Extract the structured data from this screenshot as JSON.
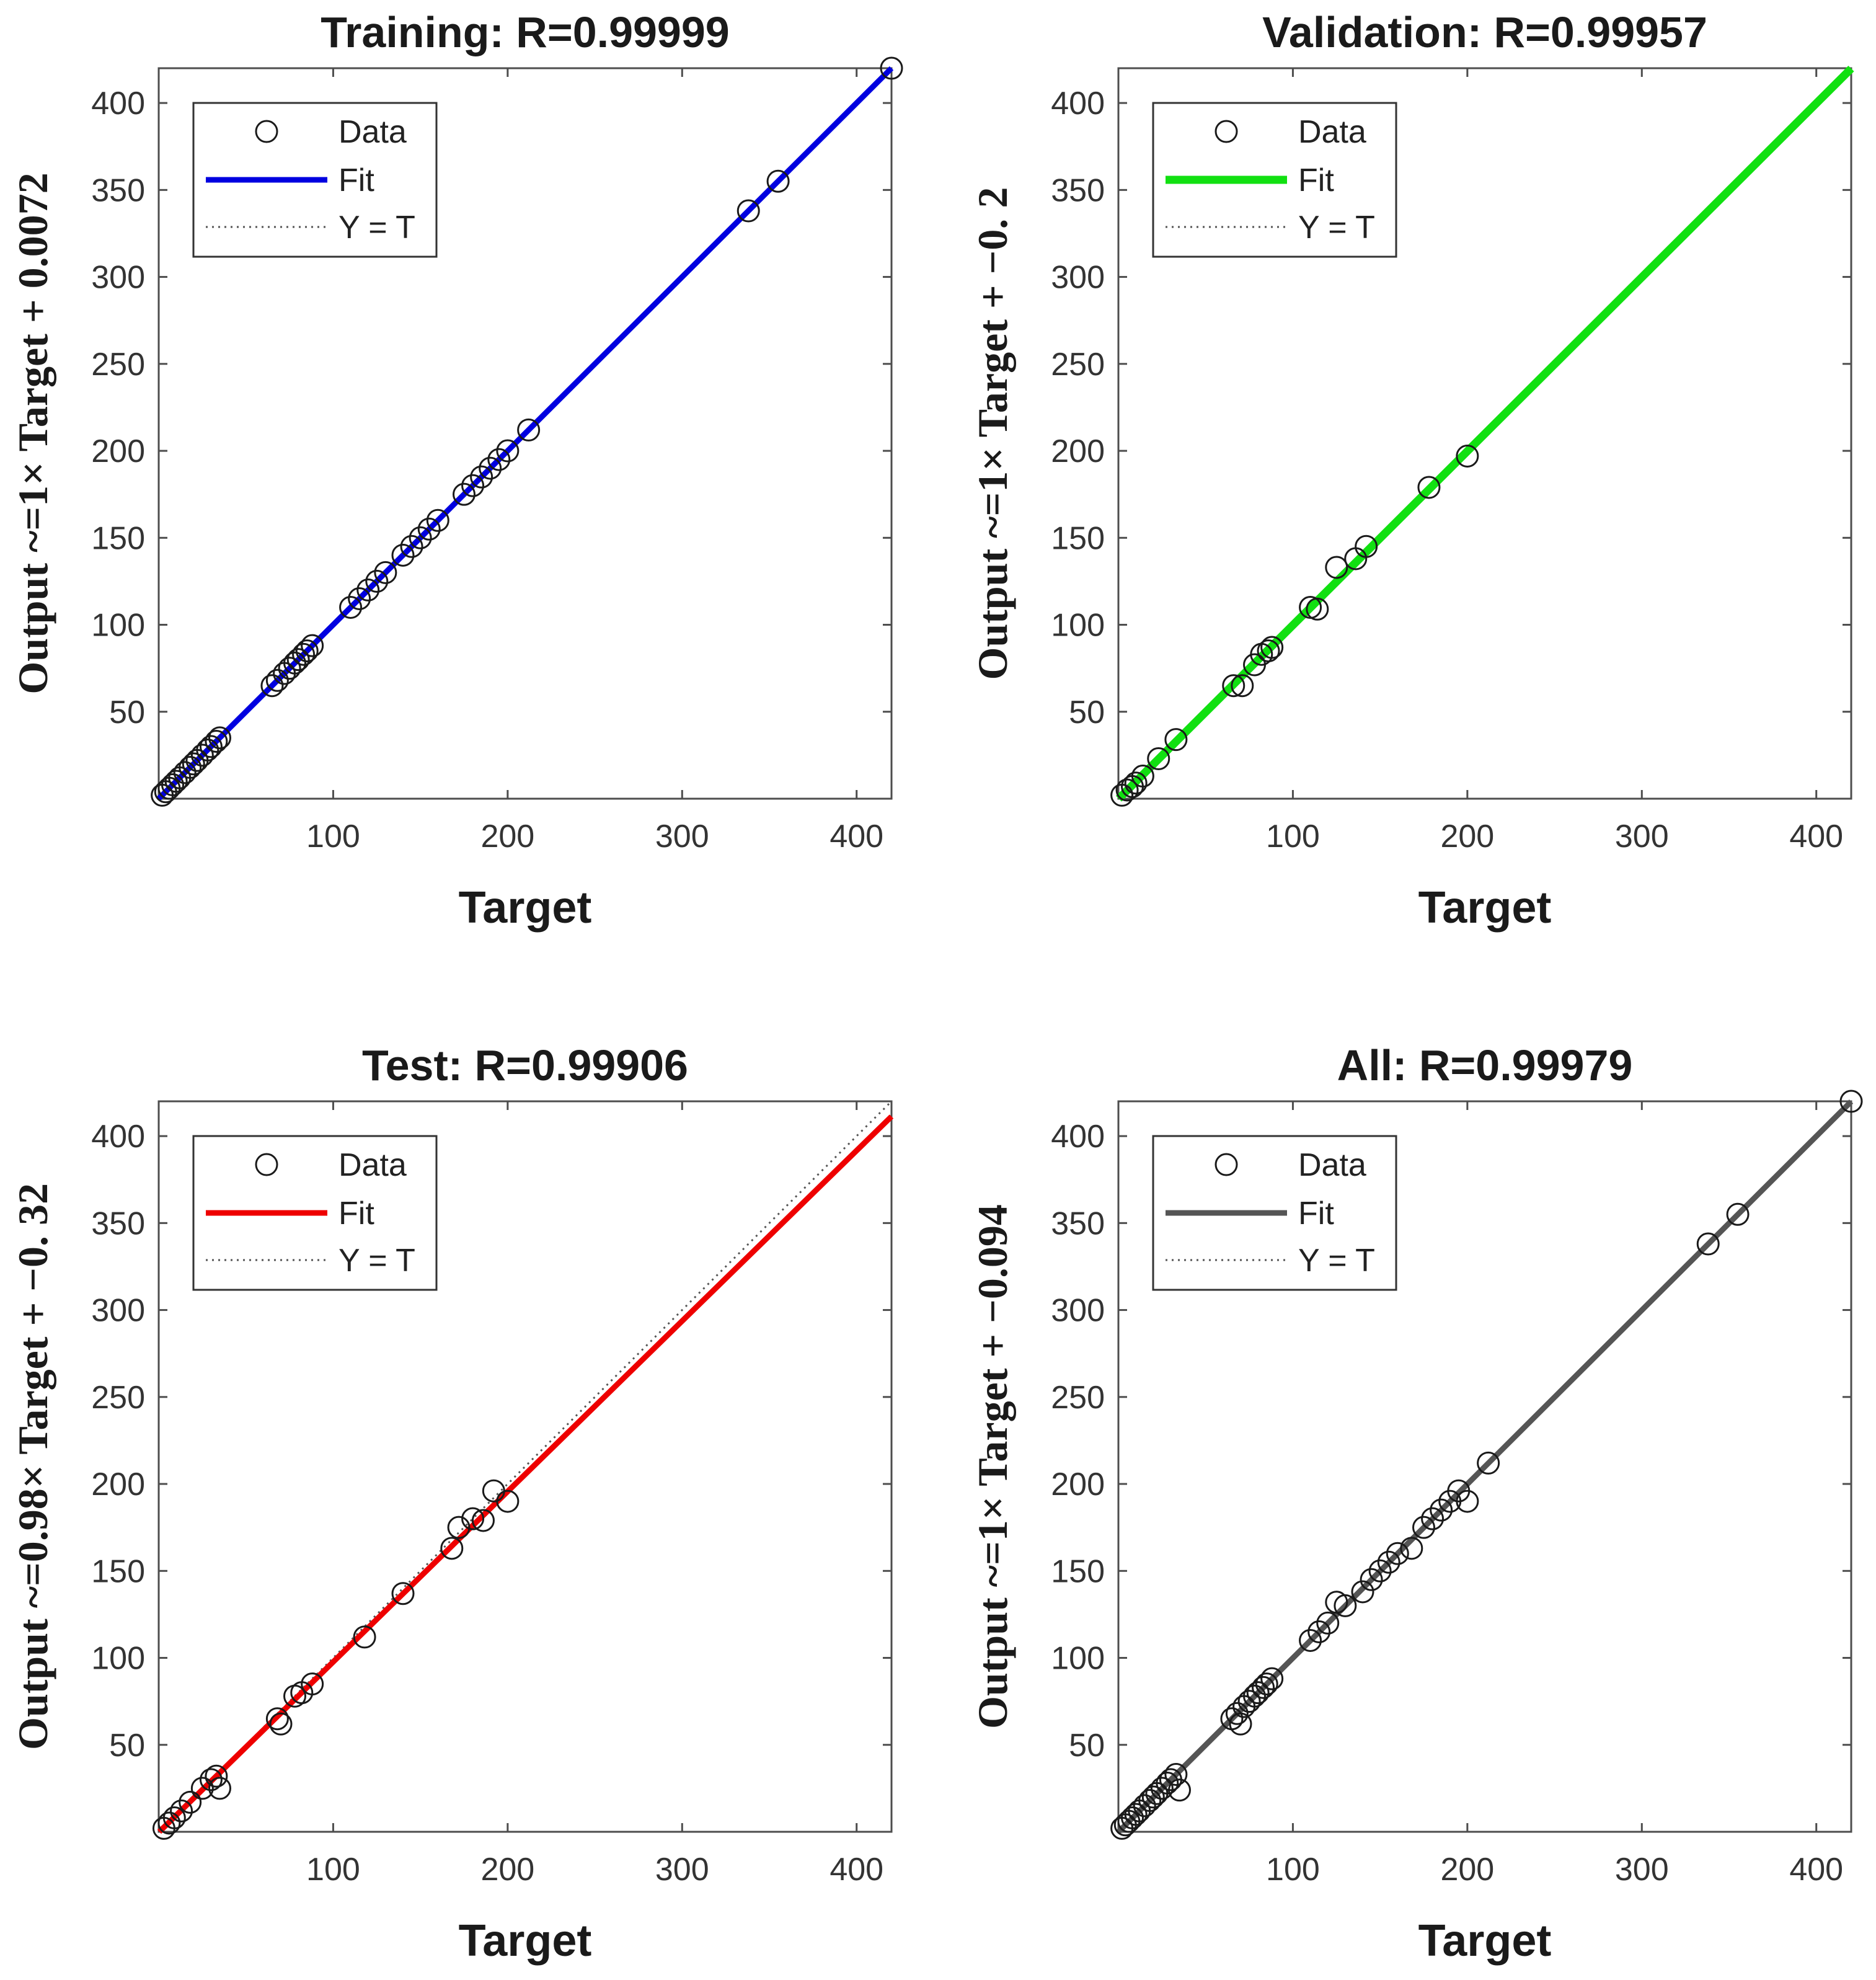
{
  "chart_data": [
    {
      "type": "scatter",
      "title": "Training: R=0.99999",
      "xlabel": "Target",
      "ylabel": "Output ~=1× Target + 0.0072",
      "xlim": [
        0,
        420
      ],
      "ylim": [
        0,
        420
      ],
      "xticks": [
        100,
        200,
        300,
        400
      ],
      "yticks": [
        50,
        100,
        150,
        200,
        250,
        300,
        350,
        400
      ],
      "legend": {
        "placement": "top-left",
        "entries": [
          "Data",
          "Fit",
          "Y = T"
        ]
      },
      "fit": {
        "slope": 1.0,
        "intercept": 0.0072,
        "color": "#0000e0"
      },
      "x": [
        2,
        4,
        6,
        8,
        10,
        12,
        15,
        18,
        20,
        22,
        25,
        28,
        30,
        33,
        35,
        65,
        68,
        72,
        75,
        78,
        80,
        83,
        85,
        88,
        110,
        115,
        120,
        125,
        130,
        140,
        145,
        150,
        155,
        160,
        175,
        180,
        185,
        190,
        195,
        200,
        212,
        338,
        355,
        420
      ],
      "y": [
        2,
        4,
        6,
        8,
        10,
        12,
        15,
        18,
        20,
        22,
        25,
        28,
        30,
        33,
        35,
        65,
        68,
        72,
        75,
        78,
        80,
        83,
        85,
        88,
        110,
        115,
        120,
        125,
        130,
        140,
        145,
        150,
        155,
        160,
        175,
        180,
        185,
        190,
        195,
        200,
        212,
        338,
        355,
        420
      ]
    },
    {
      "type": "scatter",
      "title": "Validation: R=0.99957",
      "xlabel": "Target",
      "ylabel": "Output ~=1× Target + −0. 2",
      "xlim": [
        0,
        420
      ],
      "ylim": [
        0,
        420
      ],
      "xticks": [
        100,
        200,
        300,
        400
      ],
      "yticks": [
        50,
        100,
        150,
        200,
        250,
        300,
        350,
        400
      ],
      "legend": {
        "placement": "top-left",
        "entries": [
          "Data",
          "Fit",
          "Y = T"
        ]
      },
      "fit": {
        "slope": 1.0,
        "intercept": -0.2,
        "color": "#11e011"
      },
      "x": [
        2,
        5,
        8,
        10,
        14,
        23,
        33,
        66,
        71,
        78,
        82,
        86,
        88,
        110,
        114,
        125,
        136,
        142,
        178,
        200
      ],
      "y": [
        2,
        5,
        7,
        9,
        13,
        23,
        34,
        65,
        65,
        77,
        83,
        85,
        87,
        110,
        109,
        133,
        138,
        145,
        179,
        197
      ]
    },
    {
      "type": "scatter",
      "title": "Test: R=0.99906",
      "xlabel": "Target",
      "ylabel": "Output ~=0.98× Target + −0. 32",
      "xlim": [
        0,
        420
      ],
      "ylim": [
        0,
        420
      ],
      "xticks": [
        100,
        200,
        300,
        400
      ],
      "yticks": [
        50,
        100,
        150,
        200,
        250,
        300,
        350,
        400
      ],
      "legend": {
        "placement": "top-left",
        "entries": [
          "Data",
          "Fit",
          "Y = T"
        ]
      },
      "fit": {
        "slope": 0.98,
        "intercept": -0.32,
        "color": "#ee0000"
      },
      "x": [
        3,
        6,
        9,
        13,
        18,
        25,
        30,
        33,
        35,
        68,
        70,
        78,
        82,
        88,
        118,
        140,
        168,
        172,
        180,
        186,
        192,
        200
      ],
      "y": [
        2,
        5,
        8,
        12,
        17,
        25,
        30,
        32,
        25,
        65,
        62,
        78,
        80,
        85,
        112,
        137,
        163,
        175,
        180,
        179,
        196,
        190
      ]
    },
    {
      "type": "scatter",
      "title": "All: R=0.99979",
      "xlabel": "Target",
      "ylabel": "Output ~=1× Target + −0.094",
      "xlim": [
        0,
        420
      ],
      "ylim": [
        0,
        420
      ],
      "xticks": [
        100,
        200,
        300,
        400
      ],
      "yticks": [
        50,
        100,
        150,
        200,
        250,
        300,
        350,
        400
      ],
      "legend": {
        "placement": "top-left",
        "entries": [
          "Data",
          "Fit",
          "Y = T"
        ]
      },
      "fit": {
        "slope": 1.0,
        "intercept": -0.094,
        "color": "#555555"
      },
      "x": [
        2,
        4,
        6,
        8,
        10,
        12,
        15,
        18,
        20,
        22,
        25,
        28,
        30,
        33,
        35,
        65,
        68,
        70,
        72,
        75,
        78,
        80,
        83,
        85,
        88,
        110,
        115,
        120,
        125,
        130,
        140,
        145,
        150,
        155,
        160,
        168,
        175,
        180,
        185,
        190,
        195,
        200,
        212,
        338,
        355,
        420
      ],
      "y": [
        2,
        4,
        6,
        8,
        10,
        12,
        15,
        18,
        20,
        22,
        25,
        28,
        30,
        33,
        24,
        65,
        68,
        62,
        72,
        75,
        78,
        80,
        83,
        85,
        88,
        110,
        115,
        120,
        132,
        130,
        138,
        145,
        150,
        155,
        160,
        163,
        175,
        180,
        185,
        190,
        196,
        190,
        212,
        338,
        355,
        420
      ]
    }
  ]
}
